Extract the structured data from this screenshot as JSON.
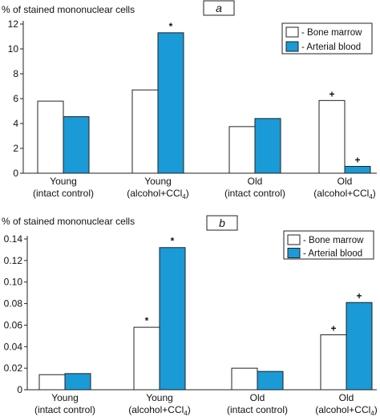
{
  "chart_data": [
    {
      "type": "bar",
      "panel_label": "a",
      "ylabel": "% of stained mononuclear cells",
      "ylim": [
        0,
        12
      ],
      "yticks": [
        0,
        2,
        4,
        6,
        8,
        10,
        12
      ],
      "ytick_labels": [
        "0",
        "2",
        "4",
        "6",
        "8",
        "10",
        "12"
      ],
      "categories": [
        {
          "line1": "Young",
          "line2": "(intact control)"
        },
        {
          "line1": "Young",
          "line2": "(alcohol+CCl",
          "sub": "4",
          "close": ")"
        },
        {
          "line1": "Old",
          "line2": "(intact control)"
        },
        {
          "line1": "Old",
          "line2": "(alcohol+CCl",
          "sub": "4",
          "close": ")"
        }
      ],
      "series": [
        {
          "name": "- Bone marrow",
          "color": "#ffffff",
          "values": [
            5.8,
            6.7,
            3.75,
            5.85
          ],
          "markers": [
            "",
            "",
            "",
            "+"
          ]
        },
        {
          "name": "- Arterial blood",
          "color": "#1a9ad6",
          "values": [
            4.55,
            11.3,
            4.4,
            0.55
          ],
          "markers": [
            "",
            "*",
            "",
            "+"
          ]
        }
      ],
      "legend": "top-right"
    },
    {
      "type": "bar",
      "panel_label": "b",
      "ylabel": "% of stained mononuclear cells",
      "ylim": [
        0,
        0.14
      ],
      "yticks": [
        0,
        0.02,
        0.04,
        0.06,
        0.08,
        0.1,
        0.12,
        0.14
      ],
      "ytick_labels": [
        "0",
        "0.02",
        "0.04",
        "0.06",
        "0.08",
        "0.10",
        "0.12",
        "0.14"
      ],
      "categories": [
        {
          "line1": "Young",
          "line2": "(intact control)"
        },
        {
          "line1": "Young",
          "line2": "(alcohol+CCl",
          "sub": "4",
          "close": ")"
        },
        {
          "line1": "Old",
          "line2": "(intact control)"
        },
        {
          "line1": "Old",
          "line2": "(alcohol+CCl",
          "sub": "4",
          "close": ")"
        }
      ],
      "series": [
        {
          "name": "- Bone marrow",
          "color": "#ffffff",
          "values": [
            0.014,
            0.058,
            0.02,
            0.051
          ],
          "markers": [
            "",
            "*",
            "",
            "+"
          ]
        },
        {
          "name": "- Arterial blood",
          "color": "#1a9ad6",
          "values": [
            0.015,
            0.132,
            0.017,
            0.081
          ],
          "markers": [
            "",
            "*",
            "",
            "+"
          ]
        }
      ],
      "legend": "top-right"
    }
  ]
}
